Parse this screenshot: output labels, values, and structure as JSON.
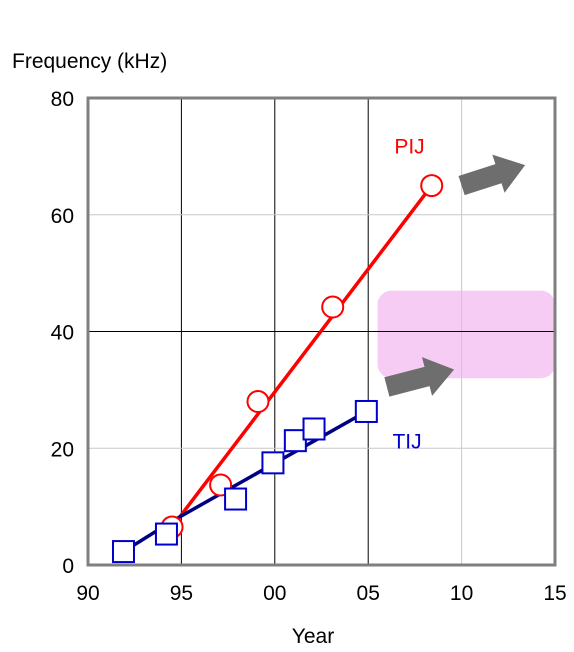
{
  "chart_data": {
    "type": "line",
    "title": "",
    "ylabel": "Frequency (kHz)",
    "xlabel": "Year",
    "xlim": [
      1990,
      2015
    ],
    "ylim": [
      0,
      80
    ],
    "x_ticks": [
      1990,
      1995,
      2000,
      2005,
      2010,
      2015
    ],
    "x_tick_labels": [
      "90",
      "95",
      "00",
      "05",
      "10",
      "15"
    ],
    "y_ticks": [
      0,
      20,
      40,
      60,
      80
    ],
    "y_tick_labels": [
      "0",
      "20",
      "40",
      "60",
      "80"
    ],
    "grid": true,
    "series": [
      {
        "name": "PIJ",
        "color": "#ff0000",
        "marker": "circle",
        "points": [
          [
            1994.5,
            6.5
          ],
          [
            1997.1,
            13.7
          ],
          [
            1999.1,
            28.0
          ],
          [
            2003.1,
            44.2
          ],
          [
            2008.4,
            65.0
          ]
        ],
        "trend": [
          [
            1994.5,
            6.5
          ],
          [
            2008.4,
            65.0
          ]
        ]
      },
      {
        "name": "TIJ",
        "color": "#0000cc",
        "line_color": "#000080",
        "marker": "square",
        "points": [
          [
            1991.9,
            2.3
          ],
          [
            1994.2,
            5.3
          ],
          [
            1997.9,
            11.3
          ],
          [
            1999.9,
            17.5
          ],
          [
            2001.1,
            21.3
          ],
          [
            2002.1,
            23.3
          ],
          [
            2004.9,
            26.3
          ]
        ],
        "trend": [
          [
            1991.9,
            2.3
          ],
          [
            1994.5,
            7.5
          ],
          [
            2004.9,
            26.3
          ]
        ]
      }
    ],
    "trend_arrows": [
      {
        "series": "PIJ",
        "color": "#6e6e6e",
        "from": [
          2010.0,
          65.0
        ],
        "to": [
          2013.4,
          68.5
        ]
      },
      {
        "series": "TIJ",
        "color": "#6e6e6e",
        "from": [
          2006.0,
          30.5
        ],
        "to": [
          2009.6,
          33.5
        ]
      }
    ],
    "highlight": {
      "color": "#f6ccf4",
      "x": [
        2005.5,
        2015.0
      ],
      "y": [
        32.0,
        47.0
      ]
    }
  }
}
